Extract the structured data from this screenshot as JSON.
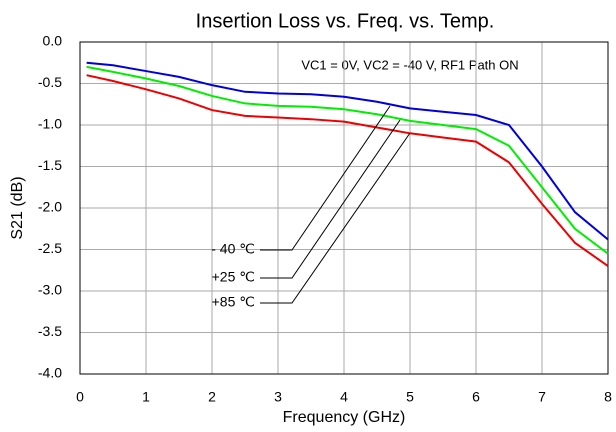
{
  "chart_data": {
    "type": "line",
    "title": "Insertion Loss vs. Freq. vs. Temp.",
    "annotation": "VC1 = 0V, VC2 = -40 V, RF1 Path ON",
    "x_label": "Frequency (GHz)",
    "y_label": "S21 (dB)",
    "x": [
      0.1,
      0.5,
      1,
      1.5,
      2,
      2.5,
      3,
      3.5,
      4,
      4.5,
      5,
      5.5,
      6,
      6.5,
      7,
      7.5,
      8
    ],
    "series": [
      {
        "name": "- 40 ℃",
        "color": "#0000dd",
        "values": [
          -0.25,
          -0.28,
          -0.35,
          -0.42,
          -0.52,
          -0.6,
          -0.62,
          -0.63,
          -0.66,
          -0.72,
          -0.8,
          -0.84,
          -0.88,
          -1.0,
          -1.5,
          -2.05,
          -2.38
        ]
      },
      {
        "name": "+25 ℃",
        "color": "#00ee00",
        "values": [
          -0.3,
          -0.36,
          -0.44,
          -0.53,
          -0.65,
          -0.74,
          -0.77,
          -0.78,
          -0.81,
          -0.87,
          -0.95,
          -1.0,
          -1.05,
          -1.25,
          -1.75,
          -2.25,
          -2.55
        ]
      },
      {
        "name": "+85 ℃",
        "color": "#ee0000",
        "values": [
          -0.4,
          -0.47,
          -0.57,
          -0.68,
          -0.82,
          -0.89,
          -0.91,
          -0.93,
          -0.96,
          -1.03,
          -1.1,
          -1.15,
          -1.2,
          -1.45,
          -1.95,
          -2.42,
          -2.7
        ]
      }
    ],
    "xlim": [
      0,
      8
    ],
    "xticks": [
      0,
      1,
      2,
      3,
      4,
      5,
      6,
      7,
      8
    ],
    "ylim": [
      -4,
      0
    ],
    "yticks": [
      {
        "value": 0,
        "label": "0.0"
      },
      -0.5,
      {
        "value": -1,
        "label": "-1.0"
      },
      -1.5,
      {
        "value": -2,
        "label": "-2.0"
      },
      -2.5,
      {
        "value": -3,
        "label": "-3.0"
      },
      -3.5,
      {
        "value": -4,
        "label": "-4.0"
      }
    ],
    "grid": true
  }
}
